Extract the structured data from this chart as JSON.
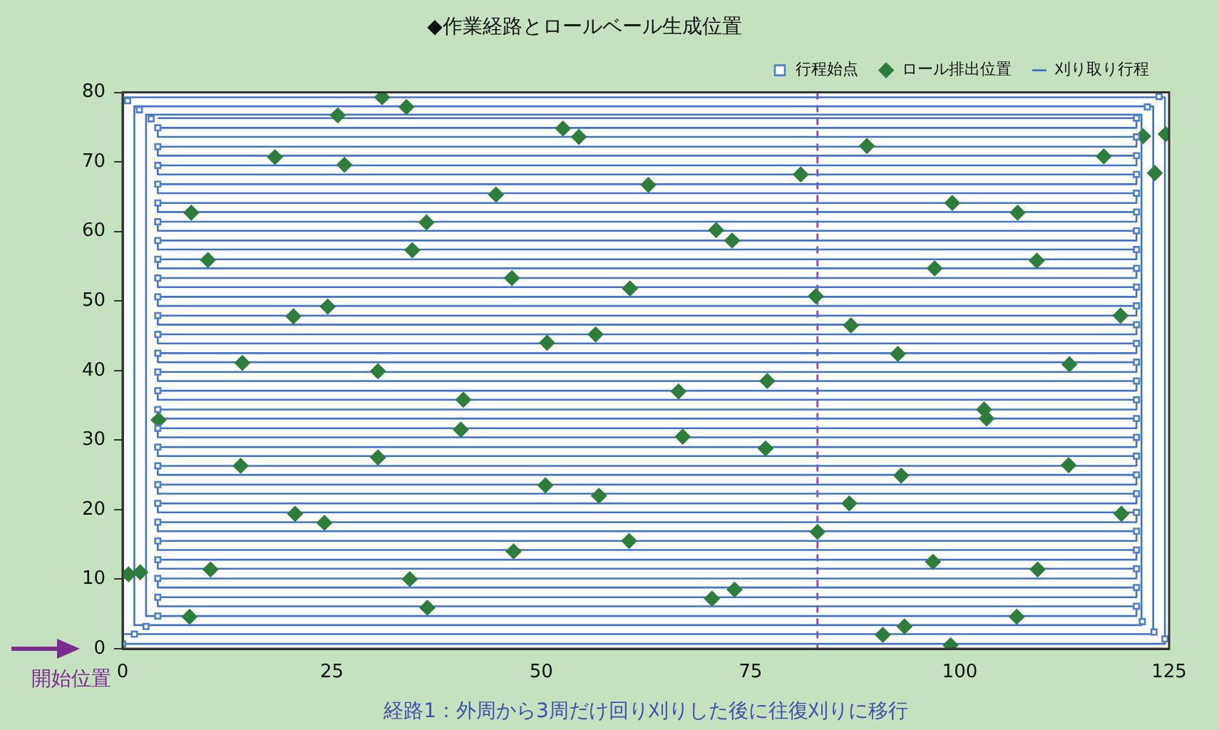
{
  "chart_data": {
    "type": "scatter",
    "title": "◆作業経路とロールベール生成位置",
    "xlabel": "経路1：外周から3周だけ回り刈りした後に往復刈りに移行",
    "xlim": [
      0,
      125
    ],
    "xticks": [
      0,
      25,
      50,
      75,
      100,
      125
    ],
    "ylim": [
      0,
      80
    ],
    "yticks": [
      0,
      10,
      20,
      30,
      40,
      50,
      60,
      70,
      80
    ],
    "grid": false,
    "legend": "top right",
    "ref_lines": [
      {
        "axis": "x",
        "value": 83,
        "color": "#9b4fb0",
        "line_style": "dashed"
      }
    ],
    "annotations": [
      {
        "text": "開始位置",
        "x": 0,
        "y": 0
      }
    ],
    "series": [
      {
        "name": "行程始点",
        "type": "scatter",
        "marker": "square",
        "color": "#4f7fc8",
        "x": [
          0,
          1.4,
          2.8,
          124.5,
          123.2,
          121.8,
          123.8,
          122.4,
          0.6,
          2.0,
          3.4,
          4.2,
          121.1,
          4.2,
          121.1,
          4.2,
          121.1,
          4.2,
          121.1,
          4.2,
          121.1,
          4.2,
          121.1,
          4.2,
          121.1,
          4.2,
          121.1,
          4.2,
          121.1,
          4.2,
          121.1,
          4.2,
          121.1,
          4.2,
          121.1,
          4.2,
          121.1,
          4.2,
          121.1,
          4.2,
          121.1,
          4.2,
          121.1,
          4.2,
          121.1,
          4.2,
          121.1,
          4.2,
          121.1,
          4.2,
          121.1,
          4.2,
          121.1,
          4.2,
          121.1,
          4.2,
          121.1,
          4.2,
          121.1,
          4.2,
          121.1,
          4.2,
          121.1,
          4.2,
          121.1
        ],
        "values": [
          0.7,
          2.1,
          3.2,
          1.4,
          2.4,
          3.9,
          79.4,
          77.9,
          78.8,
          77.5,
          76.2,
          4.7,
          6.1,
          7.4,
          8.8,
          10.1,
          11.5,
          12.8,
          14.2,
          15.5,
          16.9,
          18.2,
          19.6,
          20.9,
          22.3,
          23.6,
          25.0,
          26.3,
          27.7,
          29.0,
          30.4,
          31.7,
          33.1,
          34.4,
          35.8,
          37.1,
          38.5,
          39.8,
          41.2,
          42.5,
          43.9,
          45.2,
          46.6,
          47.9,
          49.3,
          50.6,
          52.0,
          53.3,
          54.7,
          56.0,
          57.4,
          58.7,
          60.1,
          61.4,
          62.8,
          64.1,
          65.5,
          66.8,
          68.2,
          69.5,
          70.9,
          72.2,
          73.6,
          74.9,
          76.3
        ]
      },
      {
        "name": "ロール排出位置",
        "type": "scatter",
        "marker": "diamond",
        "color": "#2e7d3c",
        "x": [
          31.0,
          33.9,
          25.7,
          18.2,
          26.5,
          8.2,
          10.2,
          20.4,
          24.5,
          36.3,
          121.9,
          124.6,
          123.3,
          117.2,
          88.9,
          81.0,
          99.1,
          106.9,
          97.0,
          109.2,
          82.8,
          87.0,
          119.2,
          52.6,
          54.5,
          44.6,
          62.8,
          34.6,
          70.9,
          72.8,
          46.5,
          60.6,
          14.3,
          30.5,
          50.7,
          56.5,
          40.7,
          66.4,
          77.0,
          40.4,
          66.9,
          76.8,
          92.6,
          113.1,
          102.9,
          103.2,
          4.3,
          14.1,
          30.5,
          20.6,
          24.1,
          10.5,
          8.0,
          0.7,
          2.1,
          34.3,
          36.4,
          50.5,
          56.9,
          46.7,
          60.5,
          70.4,
          73.1,
          83.0,
          93.0,
          86.8,
          96.8,
          109.3,
          113.0,
          119.3,
          106.8,
          90.8,
          93.4,
          98.9
        ],
        "values": [
          79.3,
          77.9,
          76.7,
          70.7,
          69.6,
          62.7,
          55.9,
          47.8,
          49.2,
          61.3,
          73.7,
          74.0,
          68.4,
          70.8,
          72.3,
          68.2,
          64.1,
          62.7,
          54.7,
          55.8,
          50.7,
          46.5,
          47.9,
          74.8,
          73.6,
          65.3,
          66.7,
          57.3,
          60.2,
          58.7,
          53.3,
          51.8,
          41.1,
          39.9,
          44.0,
          45.2,
          35.8,
          37.0,
          38.5,
          31.5,
          30.5,
          28.8,
          42.4,
          40.9,
          34.4,
          33.1,
          32.9,
          26.3,
          27.5,
          19.4,
          18.1,
          11.4,
          4.6,
          10.7,
          11.0,
          10.0,
          5.9,
          23.5,
          22.0,
          14.0,
          15.5,
          7.2,
          8.5,
          16.8,
          24.9,
          20.9,
          12.5,
          11.4,
          26.4,
          19.4,
          4.6,
          2.0,
          3.2,
          0.5
        ]
      },
      {
        "name": "刈り取り行程",
        "type": "line",
        "marker": "none",
        "line_style": "solid",
        "color": "#4472c4",
        "x": [
          0,
          124.5,
          124.5,
          0,
          0,
          123.1,
          123.1,
          1.4,
          1.4,
          121.7,
          121.7,
          2.8,
          2.8,
          121.1,
          121.1,
          4.2,
          4.2,
          121.1,
          121.1,
          4.2,
          4.2,
          121.1,
          121.1,
          4.2,
          4.2,
          121.1,
          121.1,
          4.2,
          4.2,
          121.1,
          121.1,
          4.2,
          4.2,
          121.1,
          121.1,
          4.2,
          4.2,
          121.1,
          121.1,
          4.2,
          4.2,
          121.1,
          121.1,
          4.2,
          4.2,
          121.1,
          121.1,
          4.2,
          4.2,
          121.1,
          121.1,
          4.2,
          4.2,
          121.1,
          121.1,
          4.2,
          4.2,
          121.1,
          121.1,
          4.2,
          4.2,
          121.1,
          121.1,
          4.2,
          4.2,
          121.1,
          121.1,
          4.2,
          4.2,
          121.1,
          121.1,
          4.2,
          4.2,
          121.1,
          121.1,
          4.2,
          4.2,
          121.1,
          121.1,
          4.2,
          4.2,
          121.1,
          121.1,
          4.2,
          4.2,
          121.1,
          121.1,
          4.2,
          4.2,
          121.1,
          121.1,
          4.2,
          4.2,
          121.1,
          121.1,
          4.2,
          4.2,
          121.1,
          121.1,
          4.2,
          4.2,
          121.1,
          121.1,
          4.2,
          4.2,
          121.1,
          121.1,
          4.2,
          4.2,
          121.1,
          121.1,
          4.2,
          4.2,
          121.1,
          121.1,
          4.2,
          4.2,
          121.1,
          121.1,
          4.2
        ],
        "values": [
          0.7,
          0.7,
          79.3,
          79.3,
          2.1,
          2.1,
          78.0,
          78.0,
          3.4,
          3.4,
          76.8,
          76.8,
          4.7,
          4.7,
          6.1,
          6.1,
          7.4,
          7.4,
          8.8,
          8.8,
          10.1,
          10.1,
          11.5,
          11.5,
          12.8,
          12.8,
          14.2,
          14.2,
          15.5,
          15.5,
          16.9,
          16.9,
          18.2,
          18.2,
          19.6,
          19.6,
          20.9,
          20.9,
          22.3,
          22.3,
          23.6,
          23.6,
          25.0,
          25.0,
          26.3,
          26.3,
          27.7,
          27.7,
          29.0,
          29.0,
          30.4,
          30.4,
          31.7,
          31.7,
          33.1,
          33.1,
          34.4,
          34.4,
          35.8,
          35.8,
          37.1,
          37.1,
          38.5,
          38.5,
          39.8,
          39.8,
          41.2,
          41.2,
          42.5,
          42.5,
          43.9,
          43.9,
          45.2,
          45.2,
          46.6,
          46.6,
          47.9,
          47.9,
          49.3,
          49.3,
          50.6,
          50.6,
          52.0,
          52.0,
          53.3,
          53.3,
          54.7,
          54.7,
          56.0,
          56.0,
          57.4,
          57.4,
          58.7,
          58.7,
          60.1,
          60.1,
          61.4,
          61.4,
          62.8,
          62.8,
          64.1,
          64.1,
          65.5,
          65.5,
          66.8,
          66.8,
          68.2,
          68.2,
          69.5,
          69.5,
          70.9,
          70.9,
          72.2,
          72.2,
          73.6,
          73.6,
          74.9,
          74.9,
          76.3,
          76.3
        ]
      }
    ]
  }
}
